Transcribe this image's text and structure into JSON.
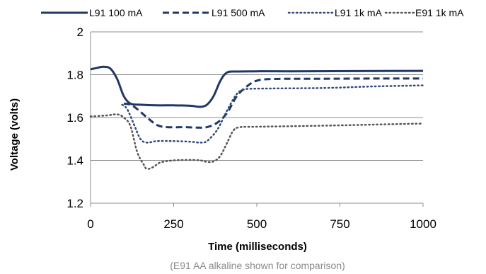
{
  "chart_data": {
    "type": "line",
    "title": "",
    "xlabel": "Time (milliseconds)",
    "ylabel": "Voltage (volts)",
    "caption": "(E91 AA alkaline shown for comparison)",
    "xlim": [
      0,
      1000
    ],
    "ylim": [
      1.2,
      2.0
    ],
    "xticks": [
      "0",
      "250",
      "500",
      "750",
      "1000"
    ],
    "yticks": [
      "1.2",
      "1.4",
      "1.6",
      "1.8",
      "2"
    ],
    "grid": "horizontal",
    "legend_position": "top",
    "series": [
      {
        "name": "L91 100 mA",
        "color": "#1f3864",
        "style": "solid",
        "points": [
          [
            0,
            1.825
          ],
          [
            20,
            1.832
          ],
          [
            40,
            1.837
          ],
          [
            60,
            1.828
          ],
          [
            80,
            1.78
          ],
          [
            100,
            1.7
          ],
          [
            120,
            1.665
          ],
          [
            150,
            1.66
          ],
          [
            200,
            1.657
          ],
          [
            250,
            1.657
          ],
          [
            300,
            1.655
          ],
          [
            330,
            1.65
          ],
          [
            350,
            1.66
          ],
          [
            370,
            1.7
          ],
          [
            390,
            1.77
          ],
          [
            410,
            1.81
          ],
          [
            440,
            1.815
          ],
          [
            500,
            1.816
          ],
          [
            600,
            1.816
          ],
          [
            800,
            1.817
          ],
          [
            1000,
            1.818
          ]
        ]
      },
      {
        "name": "L91 500 mA",
        "color": "#1f3864",
        "style": "dashed",
        "points": [
          [
            100,
            1.665
          ],
          [
            120,
            1.66
          ],
          [
            140,
            1.64
          ],
          [
            170,
            1.6
          ],
          [
            200,
            1.565
          ],
          [
            230,
            1.555
          ],
          [
            280,
            1.555
          ],
          [
            320,
            1.553
          ],
          [
            350,
            1.555
          ],
          [
            380,
            1.575
          ],
          [
            410,
            1.62
          ],
          [
            440,
            1.7
          ],
          [
            470,
            1.745
          ],
          [
            500,
            1.772
          ],
          [
            550,
            1.78
          ],
          [
            700,
            1.781
          ],
          [
            850,
            1.782
          ],
          [
            1000,
            1.782
          ]
        ]
      },
      {
        "name": "L91 1k mA",
        "color": "#2f4a7a",
        "style": "dotted",
        "points": [
          [
            95,
            1.66
          ],
          [
            110,
            1.64
          ],
          [
            130,
            1.57
          ],
          [
            150,
            1.5
          ],
          [
            170,
            1.483
          ],
          [
            200,
            1.49
          ],
          [
            250,
            1.49
          ],
          [
            300,
            1.487
          ],
          [
            330,
            1.483
          ],
          [
            350,
            1.49
          ],
          [
            380,
            1.54
          ],
          [
            400,
            1.6
          ],
          [
            420,
            1.66
          ],
          [
            440,
            1.71
          ],
          [
            460,
            1.73
          ],
          [
            500,
            1.735
          ],
          [
            700,
            1.738
          ],
          [
            850,
            1.745
          ],
          [
            1000,
            1.75
          ]
        ]
      },
      {
        "name": "E91 1k mA",
        "color": "#555555",
        "style": "dotted",
        "points": [
          [
            0,
            1.605
          ],
          [
            50,
            1.61
          ],
          [
            80,
            1.615
          ],
          [
            100,
            1.6
          ],
          [
            120,
            1.56
          ],
          [
            140,
            1.44
          ],
          [
            160,
            1.38
          ],
          [
            170,
            1.36
          ],
          [
            190,
            1.37
          ],
          [
            210,
            1.39
          ],
          [
            250,
            1.4
          ],
          [
            300,
            1.402
          ],
          [
            330,
            1.4
          ],
          [
            350,
            1.393
          ],
          [
            370,
            1.395
          ],
          [
            390,
            1.42
          ],
          [
            410,
            1.48
          ],
          [
            430,
            1.54
          ],
          [
            450,
            1.555
          ],
          [
            500,
            1.557
          ],
          [
            700,
            1.562
          ],
          [
            850,
            1.567
          ],
          [
            1000,
            1.572
          ]
        ]
      }
    ]
  }
}
